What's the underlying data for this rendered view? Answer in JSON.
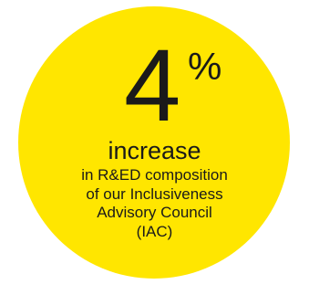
{
  "stat": {
    "value": "4",
    "unit": "%"
  },
  "headline": "increase",
  "description_lines": [
    "in R&ED composition",
    "of our Inclusiveness",
    "Advisory Council",
    "(IAC)"
  ],
  "colors": {
    "circle": "#ffe600",
    "text": "#1a1a1a",
    "background": "#ffffff"
  }
}
